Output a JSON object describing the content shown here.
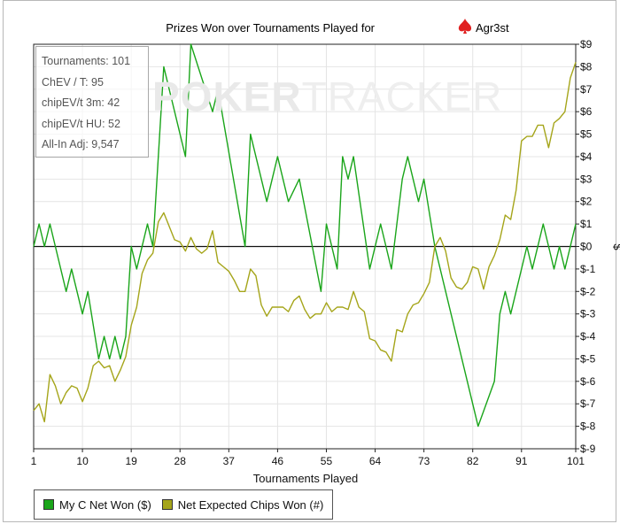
{
  "window": {
    "title_prefix": "Prizes Won over Tournaments Played for",
    "player": "Agr3st"
  },
  "stats_box": {
    "lines": [
      "Tournaments: 101",
      "ChEV / T: 95",
      "chipEV/t 3m: 42",
      "chipEV/t HU: 52",
      "All-In Adj: 9,547"
    ]
  },
  "watermark": {
    "part1": "POKER",
    "part2": "TRACKER"
  },
  "legend": [
    {
      "label": "My C Net Won ($)",
      "color": "#1aa51a"
    },
    {
      "label": "Net Expected Chips Won (#)",
      "color": "#a5a51a"
    }
  ],
  "chart_data": {
    "type": "line",
    "title": "Prizes Won over Tournaments Played for Agr3st",
    "xlabel": "Tournaments Played",
    "ylabel": "$",
    "xlim": [
      1,
      101
    ],
    "ylim": [
      -9,
      9
    ],
    "x_ticks": [
      "1",
      "10",
      "19",
      "28",
      "37",
      "46",
      "55",
      "64",
      "73",
      "82",
      "91",
      "101"
    ],
    "y_ticks": [
      "$9",
      "$8",
      "$7",
      "$6",
      "$5",
      "$4",
      "$3",
      "$2",
      "$1",
      "$0",
      "$-1",
      "$-2",
      "$-3",
      "$-4",
      "$-5",
      "$-6",
      "$-7",
      "$-8",
      "$-9"
    ],
    "grid": true,
    "legend_position": "bottom-left",
    "series": [
      {
        "name": "My C Net Won ($)",
        "color": "#1aa51a",
        "points": [
          [
            1,
            0
          ],
          [
            2,
            1
          ],
          [
            3,
            0
          ],
          [
            4,
            1
          ],
          [
            5,
            0
          ],
          [
            7,
            -2
          ],
          [
            8,
            -1
          ],
          [
            10,
            -3
          ],
          [
            11,
            -2
          ],
          [
            13,
            -5
          ],
          [
            14,
            -4
          ],
          [
            15,
            -5
          ],
          [
            16,
            -4
          ],
          [
            17,
            -5
          ],
          [
            18,
            -4
          ],
          [
            19,
            0
          ],
          [
            20,
            -1
          ],
          [
            22,
            1
          ],
          [
            23,
            0
          ],
          [
            25,
            8
          ],
          [
            29,
            4
          ],
          [
            30,
            9
          ],
          [
            34,
            6
          ],
          [
            35,
            7
          ],
          [
            40,
            0
          ],
          [
            41,
            5
          ],
          [
            44,
            2
          ],
          [
            46,
            4
          ],
          [
            48,
            2
          ],
          [
            50,
            3
          ],
          [
            54,
            -2
          ],
          [
            55,
            1
          ],
          [
            57,
            -1
          ],
          [
            58,
            4
          ],
          [
            59,
            3
          ],
          [
            60,
            4
          ],
          [
            63,
            -1
          ],
          [
            65,
            1
          ],
          [
            66,
            0
          ],
          [
            67,
            -1
          ],
          [
            69,
            3
          ],
          [
            70,
            4
          ],
          [
            72,
            2
          ],
          [
            73,
            3
          ],
          [
            75,
            0
          ],
          [
            83,
            -8
          ],
          [
            86,
            -6
          ],
          [
            87,
            -3
          ],
          [
            88,
            -2
          ],
          [
            89,
            -3
          ],
          [
            92,
            0
          ],
          [
            93,
            -1
          ],
          [
            95,
            1
          ],
          [
            96,
            0
          ],
          [
            97,
            -1
          ],
          [
            98,
            0
          ],
          [
            99,
            -1
          ],
          [
            101,
            1
          ]
        ]
      },
      {
        "name": "Net Expected Chips Won (#)",
        "color": "#a5a51a",
        "points": [
          [
            1,
            -7.3
          ],
          [
            2,
            -7.0
          ],
          [
            3,
            -7.8
          ],
          [
            4,
            -5.7
          ],
          [
            5,
            -6.2
          ],
          [
            6,
            -7.0
          ],
          [
            7,
            -6.5
          ],
          [
            8,
            -6.2
          ],
          [
            9,
            -6.3
          ],
          [
            10,
            -6.9
          ],
          [
            11,
            -6.3
          ],
          [
            12,
            -5.3
          ],
          [
            13,
            -5.1
          ],
          [
            14,
            -5.4
          ],
          [
            15,
            -5.3
          ],
          [
            16,
            -6.0
          ],
          [
            17,
            -5.5
          ],
          [
            18,
            -4.9
          ],
          [
            19,
            -3.5
          ],
          [
            20,
            -2.7
          ],
          [
            21,
            -1.2
          ],
          [
            22,
            -0.6
          ],
          [
            23,
            -0.3
          ],
          [
            24,
            1.1
          ],
          [
            25,
            1.5
          ],
          [
            26,
            0.9
          ],
          [
            27,
            0.3
          ],
          [
            28,
            0.2
          ],
          [
            29,
            -0.2
          ],
          [
            30,
            0.4
          ],
          [
            31,
            -0.1
          ],
          [
            32,
            -0.3
          ],
          [
            33,
            -0.1
          ],
          [
            34,
            0.7
          ],
          [
            35,
            -0.7
          ],
          [
            36,
            -0.9
          ],
          [
            37,
            -1.1
          ],
          [
            38,
            -1.5
          ],
          [
            39,
            -2.0
          ],
          [
            40,
            -2.0
          ],
          [
            41,
            -1.0
          ],
          [
            42,
            -1.3
          ],
          [
            43,
            -2.6
          ],
          [
            44,
            -3.1
          ],
          [
            45,
            -2.7
          ],
          [
            46,
            -2.7
          ],
          [
            47,
            -2.7
          ],
          [
            48,
            -2.9
          ],
          [
            49,
            -2.4
          ],
          [
            50,
            -2.2
          ],
          [
            51,
            -2.8
          ],
          [
            52,
            -3.2
          ],
          [
            53,
            -3.0
          ],
          [
            54,
            -3.0
          ],
          [
            55,
            -2.5
          ],
          [
            56,
            -2.9
          ],
          [
            57,
            -2.7
          ],
          [
            58,
            -2.7
          ],
          [
            59,
            -2.8
          ],
          [
            60,
            -2.0
          ],
          [
            61,
            -2.7
          ],
          [
            62,
            -2.9
          ],
          [
            63,
            -4.1
          ],
          [
            64,
            -4.2
          ],
          [
            65,
            -4.6
          ],
          [
            66,
            -4.7
          ],
          [
            67,
            -5.1
          ],
          [
            68,
            -3.7
          ],
          [
            69,
            -3.8
          ],
          [
            70,
            -3.0
          ],
          [
            71,
            -2.6
          ],
          [
            72,
            -2.5
          ],
          [
            73,
            -2.1
          ],
          [
            74,
            -1.6
          ],
          [
            75,
            0.0
          ],
          [
            76,
            0.4
          ],
          [
            77,
            -0.2
          ],
          [
            78,
            -1.4
          ],
          [
            79,
            -1.8
          ],
          [
            80,
            -1.9
          ],
          [
            81,
            -1.6
          ],
          [
            82,
            -0.9
          ],
          [
            83,
            -1.0
          ],
          [
            84,
            -1.9
          ],
          [
            85,
            -0.9
          ],
          [
            86,
            -0.4
          ],
          [
            87,
            0.3
          ],
          [
            88,
            1.4
          ],
          [
            89,
            1.2
          ],
          [
            90,
            2.5
          ],
          [
            91,
            4.7
          ],
          [
            92,
            4.9
          ],
          [
            93,
            4.9
          ],
          [
            94,
            5.4
          ],
          [
            95,
            5.4
          ],
          [
            96,
            4.4
          ],
          [
            97,
            5.5
          ],
          [
            98,
            5.7
          ],
          [
            99,
            6.0
          ],
          [
            100,
            7.5
          ],
          [
            101,
            8.2
          ]
        ]
      }
    ]
  }
}
